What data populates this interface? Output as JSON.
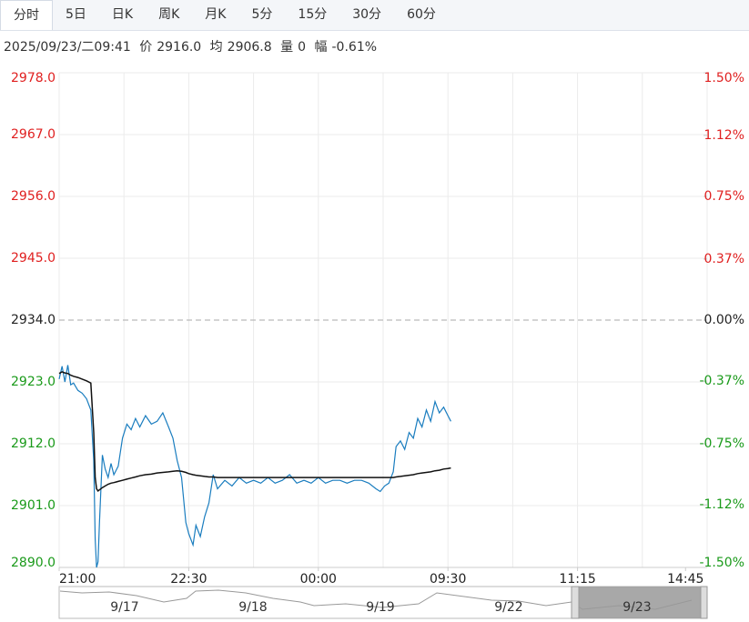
{
  "tabs": [
    "分时",
    "5日",
    "日K",
    "周K",
    "月K",
    "5分",
    "15分",
    "30分",
    "60分"
  ],
  "info": {
    "datetime": "2025/09/23/二09:41",
    "price_label": "价",
    "price": "2916.0",
    "avg_label": "均",
    "avg": "2906.8",
    "vol_label": "量",
    "vol": "0",
    "chg_label": "幅",
    "chg": "-0.61%"
  },
  "chart_data": {
    "type": "line",
    "x": [
      0,
      2,
      4,
      6,
      8,
      10,
      13,
      16,
      19,
      22,
      24,
      25,
      26,
      27,
      28,
      30,
      32,
      34,
      36,
      38,
      41,
      44,
      47,
      50,
      53,
      56,
      60,
      64,
      68,
      72,
      76,
      79,
      82,
      85,
      88,
      90,
      93,
      95,
      98,
      101,
      104,
      107,
      110,
      115,
      120,
      125,
      130,
      135,
      140,
      145,
      150,
      155,
      160,
      165,
      170,
      175,
      180,
      185,
      190,
      195,
      200,
      205,
      210,
      215,
      220,
      223,
      226,
      229,
      232,
      234,
      237,
      240,
      243,
      246,
      249,
      252,
      255,
      258,
      261,
      264,
      267,
      270,
      272
    ],
    "series": [
      {
        "name": "价",
        "color": "#1a7dbf",
        "values": [
          2923.5,
          2925.8,
          2923.0,
          2926.0,
          2922.5,
          2922.8,
          2921.5,
          2921.0,
          2920.0,
          2918.0,
          2909.0,
          2895.0,
          2890.0,
          2891.0,
          2898.0,
          2910.0,
          2907.5,
          2906.0,
          2908.5,
          2906.5,
          2908.0,
          2913.0,
          2915.5,
          2914.5,
          2916.5,
          2915.0,
          2917.0,
          2915.5,
          2916.0,
          2917.5,
          2915.0,
          2913.0,
          2909.0,
          2906.0,
          2898.0,
          2896.0,
          2894.0,
          2897.5,
          2895.5,
          2899.0,
          2901.5,
          2906.5,
          2904.0,
          2905.5,
          2904.5,
          2906.0,
          2905.0,
          2905.5,
          2905.0,
          2906.0,
          2905.0,
          2905.5,
          2906.5,
          2905.0,
          2905.5,
          2905.0,
          2906.0,
          2905.0,
          2905.5,
          2905.5,
          2905.0,
          2905.5,
          2905.5,
          2905.0,
          2904.0,
          2903.5,
          2904.5,
          2905.0,
          2907.0,
          2911.5,
          2912.5,
          2911.0,
          2914.0,
          2913.0,
          2916.5,
          2915.0,
          2918.0,
          2916.0,
          2919.5,
          2917.5,
          2918.5,
          2917.0,
          2916.0
        ]
      },
      {
        "name": "均",
        "color": "#111111",
        "values": [
          2924.5,
          2924.8,
          2924.6,
          2924.5,
          2924.2,
          2924.0,
          2923.8,
          2923.5,
          2923.2,
          2922.8,
          2914.0,
          2906.0,
          2904.0,
          2903.6,
          2903.8,
          2904.2,
          2904.5,
          2904.8,
          2905.0,
          2905.1,
          2905.3,
          2905.5,
          2905.7,
          2905.9,
          2906.1,
          2906.3,
          2906.5,
          2906.6,
          2906.8,
          2906.9,
          2907.0,
          2907.1,
          2907.2,
          2907.1,
          2906.9,
          2906.7,
          2906.5,
          2906.4,
          2906.3,
          2906.2,
          2906.1,
          2906.1,
          2906.0,
          2906.0,
          2906.0,
          2906.0,
          2906.0,
          2906.0,
          2906.0,
          2906.0,
          2906.0,
          2906.0,
          2906.0,
          2906.0,
          2906.0,
          2906.0,
          2906.0,
          2906.0,
          2906.0,
          2906.0,
          2906.0,
          2906.0,
          2906.0,
          2906.0,
          2906.0,
          2906.0,
          2906.0,
          2906.0,
          2906.0,
          2906.1,
          2906.2,
          2906.3,
          2906.4,
          2906.5,
          2906.7,
          2906.8,
          2906.9,
          2907.0,
          2907.2,
          2907.3,
          2907.5,
          2907.6,
          2907.7
        ]
      }
    ],
    "xlim": [
      0,
      450
    ],
    "xticks": [
      {
        "value": 0,
        "label": "21:00"
      },
      {
        "value": 90,
        "label": "22:30"
      },
      {
        "value": 180,
        "label": "00:00"
      },
      {
        "value": 270,
        "label": "09:30"
      },
      {
        "value": 360,
        "label": "11:15"
      },
      {
        "value": 435,
        "label": "14:45"
      }
    ],
    "xgrid": [
      0,
      45,
      90,
      135,
      180,
      225,
      270,
      315,
      360,
      405,
      450
    ],
    "ylim": [
      2890,
      2978
    ],
    "yticks": [
      {
        "value": 2978,
        "label": "2978.0"
      },
      {
        "value": 2967,
        "label": "2967.0"
      },
      {
        "value": 2956,
        "label": "2956.0"
      },
      {
        "value": 2945,
        "label": "2945.0"
      },
      {
        "value": 2934,
        "label": "2934.0"
      },
      {
        "value": 2923,
        "label": "2923.0"
      },
      {
        "value": 2912,
        "label": "2912.0"
      },
      {
        "value": 2901,
        "label": "2901.0"
      },
      {
        "value": 2890,
        "label": "2890.0"
      }
    ],
    "y2lim": [
      -1.5,
      1.5
    ],
    "y2ticks": [
      {
        "value": 1.5,
        "label": "1.50%"
      },
      {
        "value": 1.12,
        "label": "1.12%"
      },
      {
        "value": 0.75,
        "label": "0.75%"
      },
      {
        "value": 0.37,
        "label": "0.37%"
      },
      {
        "value": 0,
        "label": "0.00%"
      },
      {
        "value": -0.37,
        "label": "-0.37%"
      },
      {
        "value": -0.75,
        "label": "-0.75%"
      },
      {
        "value": -1.12,
        "label": "-1.12%"
      },
      {
        "value": -1.5,
        "label": "-1.50%"
      }
    ],
    "up_color": "#e02020",
    "down_color": "#1a9a1a",
    "flat_color": "#222222",
    "grid": true
  },
  "navigator": {
    "dates": [
      "9/17",
      "9/18",
      "9/19",
      "9/22",
      "9/23"
    ]
  }
}
